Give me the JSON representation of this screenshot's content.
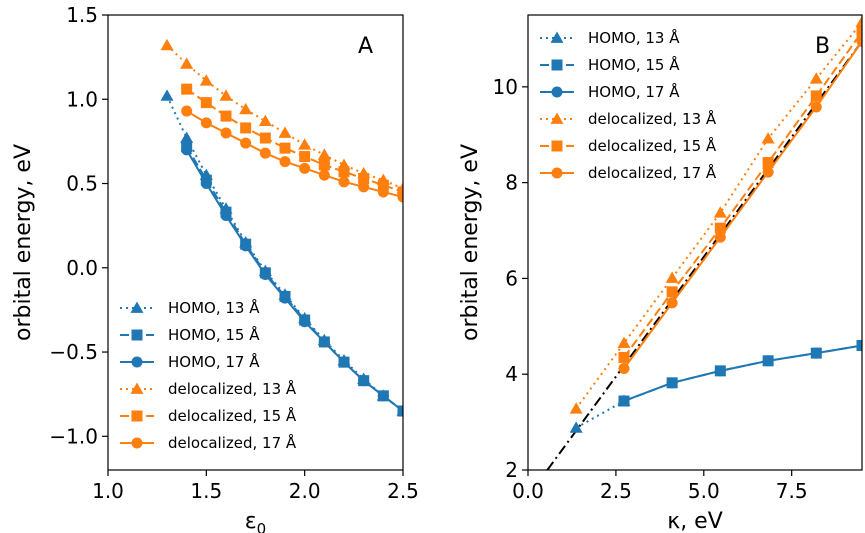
{
  "colors": {
    "homo": "#1f77b4",
    "delocalized": "#ff7f0e",
    "guide": "#000000"
  },
  "chart_data": [
    {
      "type": "line",
      "panel_label": "A",
      "xlabel_base": "ε",
      "xlabel_sub": "0",
      "ylabel": "orbital energy, eV",
      "xlim": [
        1.0,
        2.5
      ],
      "ylim": [
        -1.2,
        1.5
      ],
      "xticks": [
        1.0,
        1.5,
        2.0,
        2.5
      ],
      "xtick_labels": [
        "1.0",
        "1.5",
        "2.0",
        "2.5"
      ],
      "yticks": [
        -1.0,
        -0.5,
        0.0,
        0.5,
        1.0,
        1.5
      ],
      "ytick_labels": [
        "−1.0",
        "−0.5",
        "0.0",
        "0.5",
        "1.0",
        "1.5"
      ],
      "legend_position": "lower-left",
      "series": [
        {
          "name": "HOMO, 13 Å",
          "color_key": "homo",
          "marker": "triangle",
          "dash": "dotted",
          "x": [
            1.3,
            1.4,
            1.5,
            1.6,
            1.7,
            1.8,
            1.9,
            2.0,
            2.1,
            2.2,
            2.3,
            2.4,
            2.5
          ],
          "y": [
            1.02,
            0.77,
            0.55,
            0.35,
            0.15,
            -0.02,
            -0.16,
            -0.3,
            -0.43,
            -0.55,
            -0.66,
            -0.76,
            -0.85
          ]
        },
        {
          "name": "HOMO, 15 Å",
          "color_key": "homo",
          "marker": "square",
          "dash": "dashed",
          "x": [
            1.4,
            1.5,
            1.6,
            1.7,
            1.8,
            1.9,
            2.0,
            2.1,
            2.2,
            2.3,
            2.4,
            2.5
          ],
          "y": [
            0.72,
            0.52,
            0.33,
            0.14,
            -0.03,
            -0.17,
            -0.31,
            -0.44,
            -0.56,
            -0.67,
            -0.76,
            -0.85
          ]
        },
        {
          "name": "HOMO, 17 Å",
          "color_key": "homo",
          "marker": "circle",
          "dash": "solid",
          "x": [
            1.4,
            1.5,
            1.6,
            1.7,
            1.8,
            1.9,
            2.0,
            2.1,
            2.2,
            2.3,
            2.4,
            2.5
          ],
          "y": [
            0.7,
            0.5,
            0.31,
            0.13,
            -0.04,
            -0.18,
            -0.32,
            -0.44,
            -0.56,
            -0.67,
            -0.76,
            -0.85
          ]
        },
        {
          "name": "delocalized, 13 Å",
          "color_key": "delocalized",
          "marker": "triangle",
          "dash": "dotted",
          "x": [
            1.3,
            1.4,
            1.5,
            1.6,
            1.7,
            1.8,
            1.9,
            2.0,
            2.1,
            2.2,
            2.3,
            2.4,
            2.5
          ],
          "y": [
            1.32,
            1.21,
            1.11,
            1.02,
            0.94,
            0.87,
            0.8,
            0.73,
            0.67,
            0.61,
            0.56,
            0.52,
            0.47
          ]
        },
        {
          "name": "delocalized, 15 Å",
          "color_key": "delocalized",
          "marker": "square",
          "dash": "dashed",
          "x": [
            1.4,
            1.5,
            1.6,
            1.7,
            1.8,
            1.9,
            2.0,
            2.1,
            2.2,
            2.3,
            2.4,
            2.5
          ],
          "y": [
            1.06,
            0.98,
            0.9,
            0.83,
            0.77,
            0.71,
            0.66,
            0.61,
            0.57,
            0.53,
            0.49,
            0.45
          ]
        },
        {
          "name": "delocalized, 17 Å",
          "color_key": "delocalized",
          "marker": "circle",
          "dash": "solid",
          "x": [
            1.4,
            1.5,
            1.6,
            1.7,
            1.8,
            1.9,
            2.0,
            2.1,
            2.2,
            2.3,
            2.4,
            2.5
          ],
          "y": [
            0.93,
            0.86,
            0.8,
            0.74,
            0.68,
            0.63,
            0.59,
            0.55,
            0.51,
            0.48,
            0.45,
            0.42
          ]
        }
      ]
    },
    {
      "type": "line",
      "panel_label": "B",
      "xlabel_base": "κ",
      "xlabel_sub": "",
      "xlabel_suffix": ", eV",
      "ylabel": "orbital energy, eV",
      "xlim": [
        0.0,
        9.5
      ],
      "ylim": [
        2.0,
        11.5
      ],
      "xticks": [
        0.0,
        2.5,
        5.0,
        7.5
      ],
      "xtick_labels": [
        "0.0",
        "2.5",
        "5.0",
        "7.5"
      ],
      "yticks": [
        2,
        4,
        6,
        8,
        10
      ],
      "ytick_labels": [
        "2",
        "4",
        "6",
        "8",
        "10"
      ],
      "legend_position": "upper-left",
      "series": [
        {
          "name": "HOMO, 13 Å",
          "color_key": "homo",
          "marker": "triangle",
          "dash": "dotted",
          "x": [
            1.37,
            2.73
          ],
          "y": [
            2.88,
            3.44
          ]
        },
        {
          "name": "HOMO, 15 Å",
          "color_key": "homo",
          "marker": "square",
          "dash": "dashed",
          "x": [
            2.73,
            4.1,
            5.47,
            6.83,
            8.2,
            9.5
          ],
          "y": [
            3.44,
            3.82,
            4.07,
            4.28,
            4.44,
            4.6
          ]
        },
        {
          "name": "HOMO, 17 Å",
          "color_key": "homo",
          "marker": "circle",
          "dash": "solid",
          "x": [
            2.73,
            4.1,
            5.47,
            6.83,
            8.2,
            9.5
          ],
          "y": [
            3.44,
            3.82,
            4.07,
            4.28,
            4.44,
            4.6
          ]
        },
        {
          "name": "delocalized, 13 Å",
          "color_key": "delocalized",
          "marker": "triangle",
          "dash": "dotted",
          "x": [
            1.37,
            2.73,
            4.1,
            5.47,
            6.83,
            8.2,
            9.5
          ],
          "y": [
            3.28,
            4.65,
            6.01,
            7.37,
            8.92,
            10.17,
            11.35
          ]
        },
        {
          "name": "delocalized, 15 Å",
          "color_key": "delocalized",
          "marker": "square",
          "dash": "dashed",
          "x": [
            2.73,
            4.1,
            5.47,
            6.83,
            8.2,
            9.5
          ],
          "y": [
            4.35,
            5.72,
            7.05,
            8.42,
            9.81,
            11.15
          ]
        },
        {
          "name": "delocalized, 17 Å",
          "color_key": "delocalized",
          "marker": "circle",
          "dash": "solid",
          "x": [
            2.73,
            4.1,
            5.47,
            6.83,
            8.2,
            9.5
          ],
          "y": [
            4.12,
            5.49,
            6.86,
            8.22,
            9.58,
            10.95
          ]
        }
      ],
      "guide_line": {
        "dash": "dashdot",
        "x": [
          0.55,
          9.5
        ],
        "y": [
          2.0,
          10.95
        ]
      }
    }
  ]
}
